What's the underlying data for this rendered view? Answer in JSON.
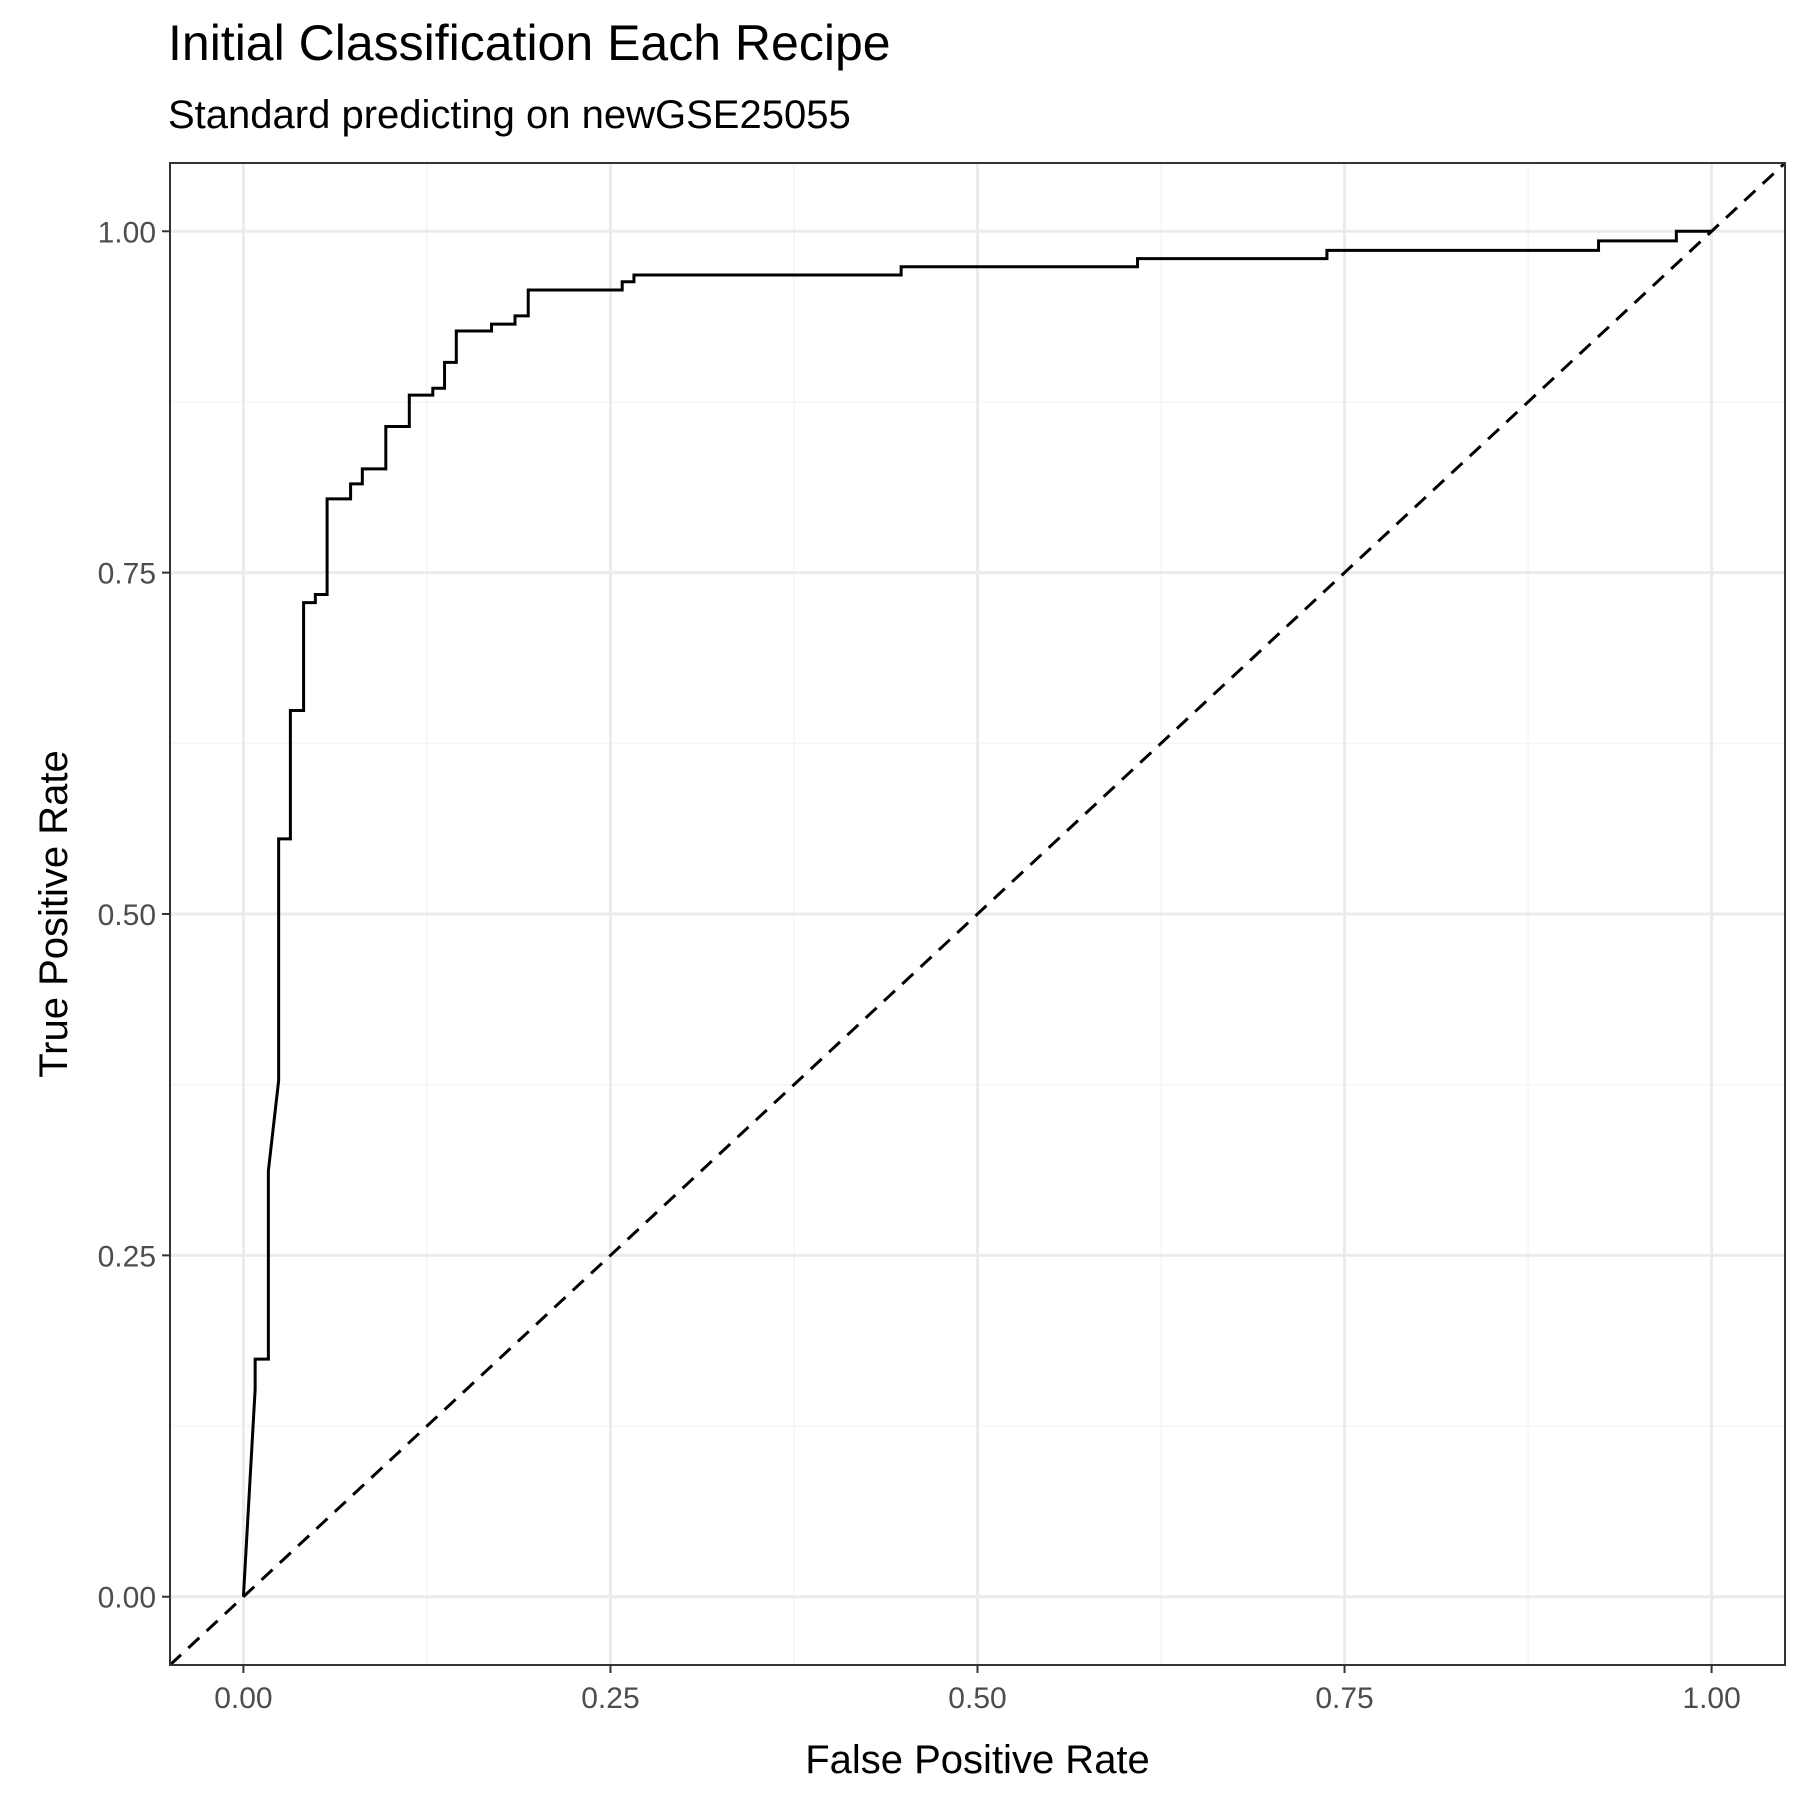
{
  "chart_data": {
    "type": "line",
    "title": "Initial Classification Each Recipe",
    "subtitle": "Standard predicting on newGSE25055",
    "xlabel": "False Positive Rate",
    "ylabel": "True Positive Rate",
    "xlim": [
      -0.05,
      1.05
    ],
    "ylim": [
      -0.05,
      1.05
    ],
    "x_ticks": [
      0.0,
      0.25,
      0.5,
      0.75,
      1.0
    ],
    "y_ticks": [
      0.0,
      0.25,
      0.5,
      0.75,
      1.0
    ],
    "x_tick_labels": [
      "0.00",
      "0.25",
      "0.50",
      "0.75",
      "1.00"
    ],
    "y_tick_labels": [
      "0.00",
      "0.25",
      "0.50",
      "0.75",
      "1.00"
    ],
    "grid": true,
    "colors": {
      "line": "#000000",
      "grid_major": "#ebebeb",
      "grid_minor": "#f5f5f5",
      "panel_border": "#333333",
      "tick_text": "#4d4d4d"
    },
    "series": [
      {
        "line_style": "solid",
        "points": [
          [
            0.0,
            0.0
          ],
          [
            0.008,
            0.152
          ],
          [
            0.008,
            0.174
          ],
          [
            0.017,
            0.174
          ],
          [
            0.017,
            0.312
          ],
          [
            0.024,
            0.378
          ],
          [
            0.024,
            0.555
          ],
          [
            0.032,
            0.555
          ],
          [
            0.032,
            0.649
          ],
          [
            0.041,
            0.649
          ],
          [
            0.041,
            0.728
          ],
          [
            0.049,
            0.728
          ],
          [
            0.049,
            0.734
          ],
          [
            0.057,
            0.734
          ],
          [
            0.057,
            0.804
          ],
          [
            0.073,
            0.804
          ],
          [
            0.073,
            0.815
          ],
          [
            0.081,
            0.815
          ],
          [
            0.081,
            0.826
          ],
          [
            0.097,
            0.826
          ],
          [
            0.097,
            0.857
          ],
          [
            0.113,
            0.857
          ],
          [
            0.113,
            0.88
          ],
          [
            0.129,
            0.88
          ],
          [
            0.129,
            0.885
          ],
          [
            0.137,
            0.885
          ],
          [
            0.137,
            0.904
          ],
          [
            0.145,
            0.904
          ],
          [
            0.145,
            0.927
          ],
          [
            0.169,
            0.927
          ],
          [
            0.169,
            0.932
          ],
          [
            0.185,
            0.932
          ],
          [
            0.185,
            0.938
          ],
          [
            0.194,
            0.938
          ],
          [
            0.194,
            0.957
          ],
          [
            0.258,
            0.957
          ],
          [
            0.258,
            0.963
          ],
          [
            0.266,
            0.963
          ],
          [
            0.266,
            0.968
          ],
          [
            0.448,
            0.968
          ],
          [
            0.448,
            0.974
          ],
          [
            0.609,
            0.974
          ],
          [
            0.609,
            0.98
          ],
          [
            0.738,
            0.98
          ],
          [
            0.738,
            0.986
          ],
          [
            0.923,
            0.986
          ],
          [
            0.923,
            0.993
          ],
          [
            0.976,
            0.993
          ],
          [
            0.976,
            1.0
          ],
          [
            1.0,
            1.0
          ]
        ]
      },
      {
        "line_style": "dashed",
        "points": [
          [
            -0.05,
            -0.05
          ],
          [
            1.05,
            1.05
          ]
        ]
      }
    ]
  }
}
